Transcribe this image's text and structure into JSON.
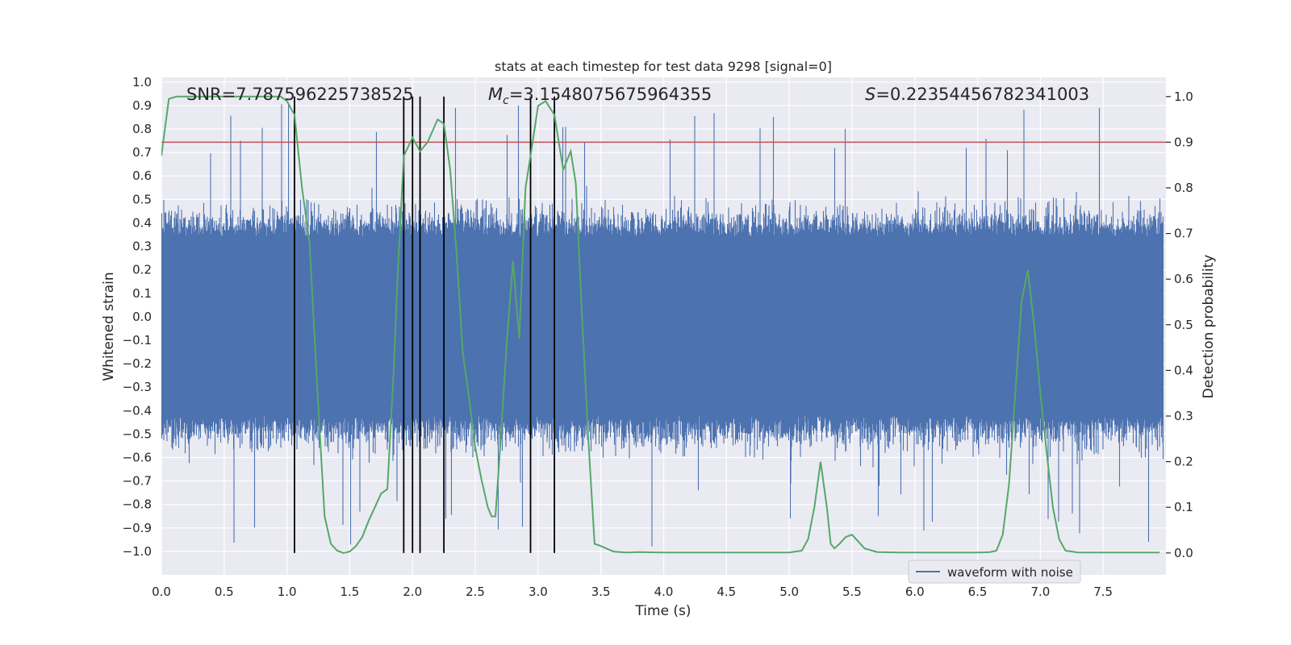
{
  "chart_data": {
    "type": "line",
    "title": "stats at each timestep for test data 9298 [signal=0]",
    "xlabel": "Time (s)",
    "ylabel": "Whitened strain",
    "y2label": "Detection probability",
    "xlim": [
      0,
      8
    ],
    "ylim": [
      -1.1,
      1.02
    ],
    "y2lim": [
      -0.048,
      1.042
    ],
    "x_ticks": [
      "0.0",
      "0.5",
      "1.0",
      "1.5",
      "2.0",
      "2.5",
      "3.0",
      "3.5",
      "4.0",
      "4.5",
      "5.0",
      "5.5",
      "6.0",
      "6.5",
      "7.0",
      "7.5"
    ],
    "y_ticks": [
      "1.0",
      "0.9",
      "0.8",
      "0.7",
      "0.6",
      "0.5",
      "0.4",
      "0.3",
      "0.2",
      "0.1",
      "0.0",
      "−0.1",
      "−0.2",
      "−0.3",
      "−0.4",
      "−0.5",
      "−0.6",
      "−0.7",
      "−0.8",
      "−0.9",
      "−1.0"
    ],
    "y2_ticks": [
      "1.0",
      "0.9",
      "0.8",
      "0.7",
      "0.6",
      "0.5",
      "0.4",
      "0.3",
      "0.2",
      "0.1",
      "0.0"
    ],
    "grid": true,
    "legend_position": "lower-right",
    "annotations": {
      "snr": "SNR=7.787596225738525",
      "mc_symbol": "M",
      "mc_sub": "c",
      "mc_value": "=3.1548075675964355",
      "s_symbol": "S",
      "s_value": "=0.22354456782341003"
    },
    "threshold_prob": 0.9,
    "event_lines_x": [
      1.06,
      1.93,
      2.0,
      2.06,
      2.25,
      2.94,
      3.13
    ],
    "series": [
      {
        "name": "waveform with noise",
        "kind": "noise-waveform",
        "axis": "left",
        "color": "#4c72b0",
        "x_range": [
          0,
          7.98
        ],
        "typical_band": [
          -0.42,
          0.34
        ],
        "peak_range": [
          -1.0,
          0.92
        ]
      },
      {
        "kind": "probability-line",
        "axis": "right",
        "color": "#55a868",
        "x": [
          0.0,
          0.06,
          0.12,
          0.2,
          0.4,
          0.6,
          0.8,
          0.95,
          1.0,
          1.06,
          1.12,
          1.18,
          1.25,
          1.3,
          1.35,
          1.4,
          1.45,
          1.5,
          1.55,
          1.6,
          1.65,
          1.7,
          1.75,
          1.8,
          1.85,
          1.88,
          1.93,
          2.0,
          2.06,
          2.12,
          2.2,
          2.25,
          2.3,
          2.35,
          2.4,
          2.45,
          2.5,
          2.55,
          2.6,
          2.63,
          2.66,
          2.7,
          2.75,
          2.8,
          2.85,
          2.9,
          2.94,
          3.0,
          3.06,
          3.13,
          3.2,
          3.26,
          3.3,
          3.35,
          3.4,
          3.45,
          3.5,
          3.6,
          3.7,
          3.8,
          4.0,
          4.5,
          5.0,
          5.1,
          5.15,
          5.2,
          5.25,
          5.3,
          5.33,
          5.36,
          5.4,
          5.45,
          5.5,
          5.55,
          5.6,
          5.7,
          5.9,
          6.0,
          6.5,
          6.6,
          6.65,
          6.7,
          6.75,
          6.8,
          6.85,
          6.9,
          6.95,
          7.0,
          7.05,
          7.1,
          7.15,
          7.2,
          7.3,
          7.5,
          7.95
        ],
        "y": [
          0.87,
          0.995,
          1.0,
          1.0,
          1.0,
          1.0,
          1.0,
          1.0,
          0.99,
          0.96,
          0.8,
          0.68,
          0.32,
          0.08,
          0.02,
          0.005,
          0.0,
          0.003,
          0.015,
          0.035,
          0.07,
          0.1,
          0.13,
          0.14,
          0.4,
          0.6,
          0.87,
          0.91,
          0.88,
          0.9,
          0.95,
          0.94,
          0.84,
          0.66,
          0.44,
          0.34,
          0.23,
          0.16,
          0.1,
          0.08,
          0.08,
          0.24,
          0.46,
          0.64,
          0.47,
          0.8,
          0.87,
          0.98,
          0.99,
          0.96,
          0.84,
          0.88,
          0.81,
          0.52,
          0.25,
          0.02,
          0.015,
          0.003,
          0.001,
          0.002,
          0.001,
          0.001,
          0.001,
          0.005,
          0.03,
          0.1,
          0.2,
          0.1,
          0.02,
          0.01,
          0.02,
          0.035,
          0.04,
          0.025,
          0.01,
          0.002,
          0.001,
          0.001,
          0.001,
          0.002,
          0.005,
          0.04,
          0.15,
          0.35,
          0.55,
          0.62,
          0.5,
          0.35,
          0.22,
          0.1,
          0.03,
          0.005,
          0.001,
          0.001,
          0.001
        ]
      }
    ]
  },
  "colors": {
    "plot_bg": "#eaeaf2",
    "grid": "#ffffff",
    "waveform": "#4c72b0",
    "probability": "#55a868",
    "threshold": "#c44e52",
    "event_line": "#000000"
  }
}
